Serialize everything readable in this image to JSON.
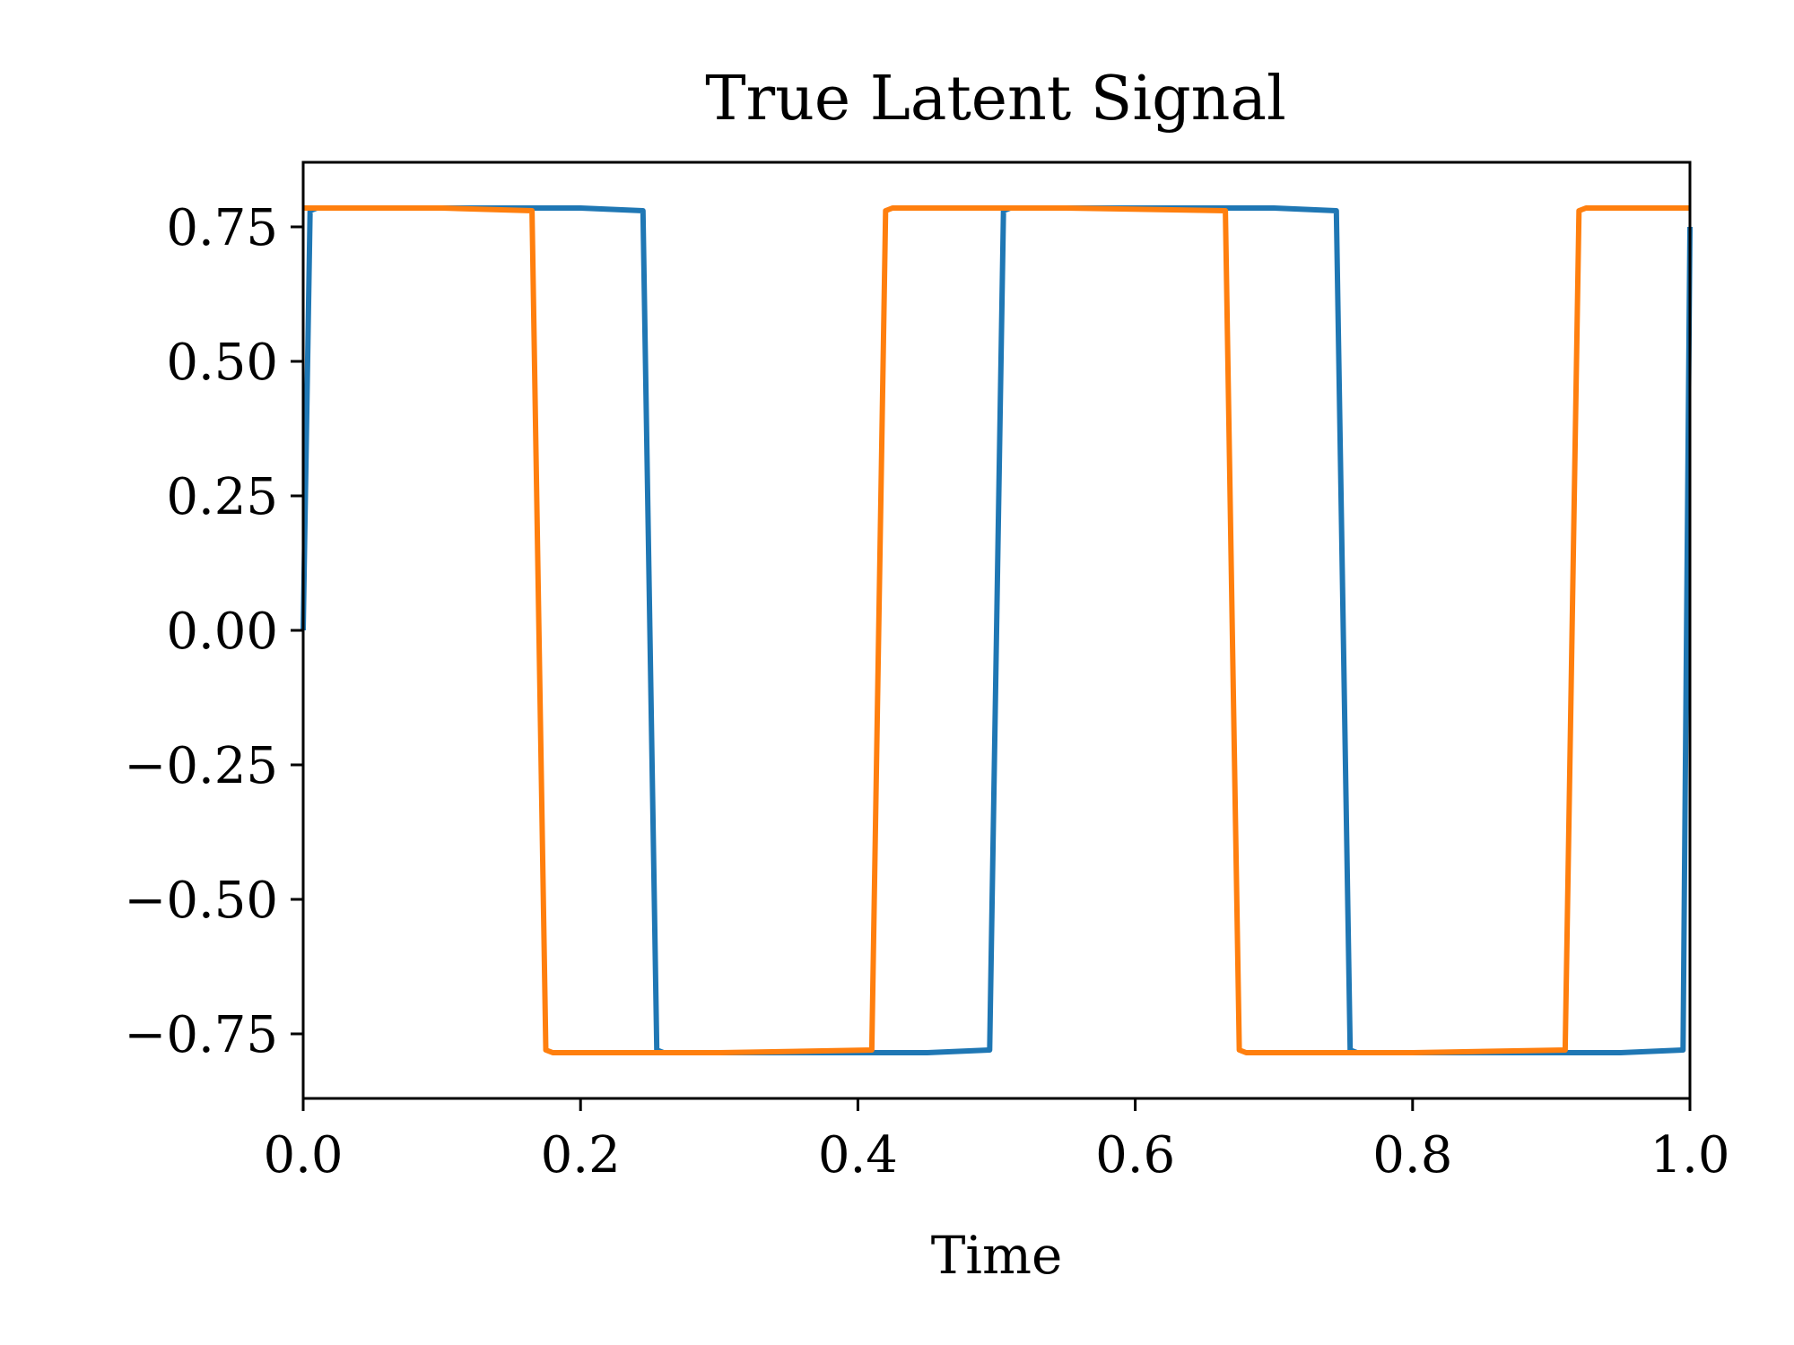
{
  "chart_data": {
    "type": "line",
    "title": "True Latent Signal",
    "xlabel": "Time",
    "ylabel": "",
    "xlim": [
      0.0,
      1.0
    ],
    "ylim": [
      -0.87,
      0.87
    ],
    "x_ticks": [
      0.0,
      0.2,
      0.4,
      0.6,
      0.8,
      1.0
    ],
    "x_tick_labels": [
      "0.0",
      "0.2",
      "0.4",
      "0.6",
      "0.8",
      "1.0"
    ],
    "y_ticks": [
      -0.75,
      -0.5,
      -0.25,
      0.0,
      0.25,
      0.5,
      0.75
    ],
    "y_tick_labels": [
      "−0.75",
      "−0.50",
      "−0.25",
      "0.00",
      "0.25",
      "0.50",
      "0.75"
    ],
    "grid": false,
    "legend": "none",
    "series": [
      {
        "color": "#1f77b4",
        "x": [
          0.0,
          0.005,
          0.01,
          0.1,
          0.2,
          0.245,
          0.25,
          0.255,
          0.26,
          0.35,
          0.45,
          0.495,
          0.5,
          0.505,
          0.51,
          0.6,
          0.7,
          0.745,
          0.75,
          0.755,
          0.76,
          0.85,
          0.95,
          0.995,
          1.0
        ],
        "y": [
          0.0,
          0.78,
          0.785,
          0.785,
          0.785,
          0.78,
          0.0,
          -0.78,
          -0.785,
          -0.785,
          -0.785,
          -0.78,
          0.0,
          0.78,
          0.785,
          0.785,
          0.785,
          0.78,
          0.0,
          -0.78,
          -0.785,
          -0.785,
          -0.785,
          -0.78,
          0.75
        ]
      },
      {
        "color": "#ff7f0e",
        "x": [
          0.0,
          0.1,
          0.165,
          0.17,
          0.175,
          0.18,
          0.3,
          0.41,
          0.415,
          0.42,
          0.425,
          0.43,
          0.55,
          0.665,
          0.67,
          0.675,
          0.68,
          0.8,
          0.91,
          0.915,
          0.92,
          0.925,
          0.93,
          1.0
        ],
        "y": [
          0.785,
          0.785,
          0.78,
          0.0,
          -0.78,
          -0.785,
          -0.785,
          -0.78,
          0.0,
          0.78,
          0.785,
          0.785,
          0.785,
          0.78,
          0.0,
          -0.78,
          -0.785,
          -0.785,
          -0.78,
          0.0,
          0.78,
          0.785,
          0.785,
          0.785
        ]
      }
    ]
  }
}
